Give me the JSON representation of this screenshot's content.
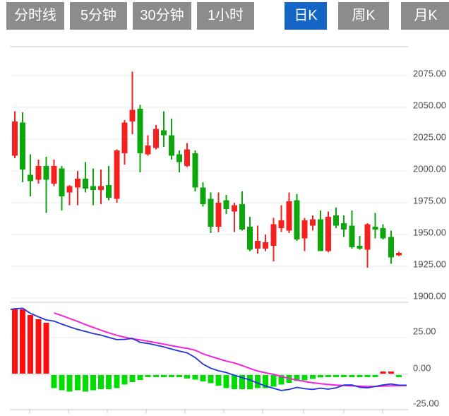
{
  "tabbar": {
    "tabs": [
      {
        "label": "分时线",
        "active": false
      },
      {
        "label": "5分钟",
        "active": false
      },
      {
        "label": "30分钟",
        "active": false
      },
      {
        "label": "1小时",
        "active": false
      },
      {
        "label": "日K",
        "active": true
      },
      {
        "label": "周K",
        "active": false
      },
      {
        "label": "月K",
        "active": false
      }
    ]
  },
  "colors": {
    "tab_bg": "#8c8c8c",
    "tab_active_bg": "#1465c5",
    "tab_text": "#ffffff",
    "candle_up": "#f52020",
    "candle_down": "#0da60d",
    "hist_up": "#fb0f0f",
    "hist_down": "#00dd00",
    "dif_line": "#2233dd",
    "dea_line": "#f822d8",
    "gridline": "#e8e8e8",
    "border_line": "#e2e2e2",
    "zero_line": "#d4d4d4",
    "axis_line": "#c4c4c4",
    "label_text": "#4c4c4c"
  },
  "chart_data": [
    {
      "type": "candlestick",
      "title": "日K (daily K-line)",
      "y_ticks": [
        "2075.00",
        "2050.00",
        "2025.00",
        "2000.00",
        "1975.00",
        "1950.00",
        "1925.00",
        "1900.00"
      ],
      "y_tick_values": [
        2075,
        2050,
        2025,
        2000,
        1975,
        1950,
        1925,
        1900
      ],
      "ylim": [
        1897,
        2098
      ],
      "grid": true,
      "legend": "none",
      "up_color_meaning": "red = up, green = down",
      "candles_ohlc": [
        [
          2012,
          2047,
          2010,
          2039
        ],
        [
          2038,
          2046,
          1991,
          2001
        ],
        [
          1997,
          2013,
          1980,
          1992
        ],
        [
          1993,
          2009,
          1990,
          2004
        ],
        [
          2004,
          2011,
          1967,
          1993
        ],
        [
          1990,
          2009,
          1988,
          2004
        ],
        [
          2002,
          2004,
          1969,
          1980
        ],
        [
          1983,
          1989,
          1973,
          1988
        ],
        [
          1987,
          2000,
          1973,
          1994
        ],
        [
          1994,
          2007,
          1983,
          1986
        ],
        [
          1988,
          2002,
          1973,
          1985
        ],
        [
          1985,
          2001,
          1974,
          1988
        ],
        [
          1989,
          2004,
          1977,
          1979
        ],
        [
          1978,
          2017,
          1975,
          2016
        ],
        [
          2014,
          2040,
          2005,
          2038
        ],
        [
          2039,
          2078,
          2029,
          2048
        ],
        [
          2049,
          2052,
          1999,
          2014
        ],
        [
          2013,
          2028,
          2012,
          2020
        ],
        [
          2018,
          2036,
          2017,
          2033
        ],
        [
          2032,
          2047,
          2019,
          2028
        ],
        [
          2028,
          2041,
          2009,
          2012
        ],
        [
          2013,
          2016,
          1999,
          2007
        ],
        [
          2004,
          2022,
          2003,
          2017
        ],
        [
          2014,
          2016,
          1984,
          1987
        ],
        [
          1987,
          1991,
          1972,
          1974
        ],
        [
          1978,
          1983,
          1951,
          1956
        ],
        [
          1956,
          1983,
          1952,
          1975
        ],
        [
          1977,
          1981,
          1966,
          1970
        ],
        [
          1968,
          1975,
          1952,
          1973
        ],
        [
          1974,
          1984,
          1953,
          1954
        ],
        [
          1956,
          1964,
          1937,
          1938
        ],
        [
          1939,
          1957,
          1935,
          1945
        ],
        [
          1939,
          1950,
          1937,
          1944
        ],
        [
          1941,
          1963,
          1929,
          1958
        ],
        [
          1955,
          1973,
          1952,
          1961
        ],
        [
          1953,
          1983,
          1951,
          1976
        ],
        [
          1977,
          1982,
          1945,
          1946
        ],
        [
          1947,
          1963,
          1937,
          1961
        ],
        [
          1957,
          1965,
          1953,
          1962
        ],
        [
          1962,
          1969,
          1937,
          1937
        ],
        [
          1937,
          1968,
          1936,
          1964
        ],
        [
          1965,
          1971,
          1955,
          1957
        ],
        [
          1959,
          1965,
          1948,
          1954
        ],
        [
          1957,
          1969,
          1939,
          1940
        ],
        [
          1941,
          1949,
          1938,
          1939
        ],
        [
          1938,
          1959,
          1924,
          1958
        ],
        [
          1956,
          1967,
          1947,
          1954
        ],
        [
          1955,
          1958,
          1946,
          1947
        ],
        [
          1948,
          1953,
          1927,
          1932
        ],
        [
          1933.5,
          1936.5,
          1933,
          1935.5
        ]
      ]
    },
    {
      "type": "macd",
      "title": "MACD",
      "y_ticks": [
        "25.00",
        "0.00",
        "-25.00"
      ],
      "y_tick_values": [
        25,
        0,
        -25
      ],
      "ylim": [
        -26,
        49
      ],
      "grid": true,
      "legend": "none",
      "histogram": [
        44.2,
        43.8,
        40.0,
        36.9,
        34.5,
        -8.8,
        -10.4,
        -11.2,
        -10.4,
        -11.2,
        -10.4,
        -9.6,
        -9.6,
        -8.8,
        -6.4,
        -4.8,
        -3.3,
        -0.6,
        -0.6,
        -0.6,
        -0.6,
        -1.2,
        -2.4,
        -3.2,
        -4.3,
        -5.6,
        -7.2,
        -8.8,
        -9.6,
        -9.6,
        -9.6,
        -9.0,
        -8.8,
        -8.0,
        -6.6,
        -5.2,
        -4.2,
        -3.5,
        -2.6,
        -1.8,
        -1.2,
        -0.8,
        -0.6,
        -0.5,
        -0.6,
        -0.7,
        -0.6,
        0.6,
        0.6,
        -0.6
      ],
      "dif": [
        44.6,
        45.0,
        41.5,
        39.2,
        37.0,
        36.2,
        34.2,
        32.3,
        30.6,
        29.2,
        27.8,
        26.7,
        25.1,
        23.6,
        23.8,
        24.4,
        21.8,
        21.0,
        19.9,
        18.7,
        17.2,
        15.8,
        14.6,
        11.5,
        7.0,
        4.2,
        2.4,
        1.2,
        -0.6,
        -2.2,
        -3.8,
        -6.0,
        -8.0,
        -9.5,
        -11.0,
        -10.3,
        -8.9,
        -9.8,
        -10.3,
        -9.4,
        -10.1,
        -9.2,
        -7.3,
        -7.2,
        -8.8,
        -9.2,
        -8.2,
        -7.2,
        -6.6,
        -7.4
      ],
      "dea": [
        null,
        null,
        null,
        null,
        null,
        41.8,
        40.0,
        38.0,
        36.0,
        33.9,
        31.9,
        30.0,
        28.2,
        26.6,
        25.3,
        24.2,
        23.4,
        22.5,
        21.6,
        20.6,
        19.5,
        18.5,
        17.7,
        16.4,
        14.0,
        12.2,
        10.6,
        9.0,
        7.8,
        6.0,
        4.0,
        2.2,
        1.0,
        0.0,
        -1.5,
        -2.8,
        -3.9,
        -4.9,
        -5.7,
        -6.4,
        -6.9,
        -7.3,
        -7.6,
        -7.9,
        -8.1,
        -8.2,
        -8.2,
        -8.0,
        -7.8,
        -7.7
      ]
    }
  ]
}
